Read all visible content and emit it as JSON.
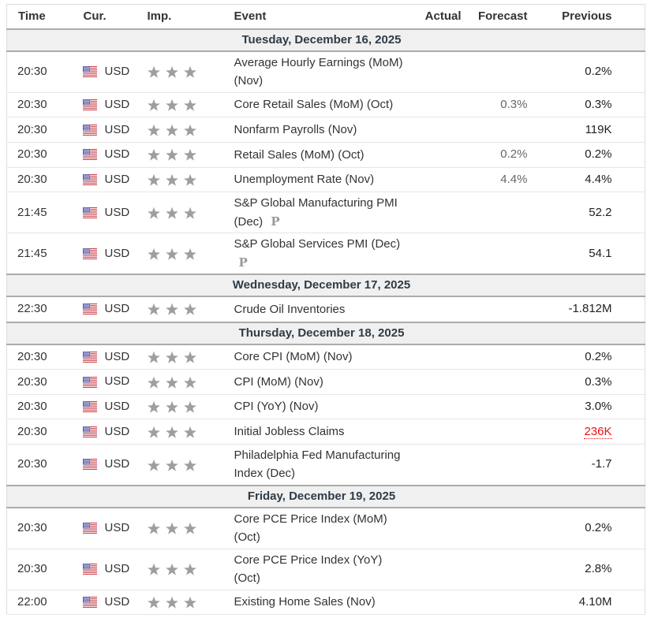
{
  "table": {
    "columns": [
      {
        "key": "time",
        "label": "Time"
      },
      {
        "key": "currency",
        "label": "Cur."
      },
      {
        "key": "importance",
        "label": "Imp."
      },
      {
        "key": "event",
        "label": "Event"
      },
      {
        "key": "actual",
        "label": "Actual"
      },
      {
        "key": "forecast",
        "label": "Forecast"
      },
      {
        "key": "previous",
        "label": "Previous"
      }
    ],
    "preliminary_marker": "P",
    "currency_flag": "us-flag",
    "importance_max": 3,
    "groups": [
      {
        "date": "Tuesday, December 16, 2025",
        "rows": [
          {
            "time": "20:30",
            "currency": "USD",
            "importance": 3,
            "event": "Average Hourly Earnings (MoM) (Nov)",
            "preliminary": false,
            "actual": "",
            "forecast": "",
            "previous": "0.2%",
            "previous_alert": false
          },
          {
            "time": "20:30",
            "currency": "USD",
            "importance": 3,
            "event": "Core Retail Sales (MoM) (Oct)",
            "preliminary": false,
            "actual": "",
            "forecast": "0.3%",
            "previous": "0.3%",
            "previous_alert": false
          },
          {
            "time": "20:30",
            "currency": "USD",
            "importance": 3,
            "event": "Nonfarm Payrolls (Nov)",
            "preliminary": false,
            "actual": "",
            "forecast": "",
            "previous": "119K",
            "previous_alert": false
          },
          {
            "time": "20:30",
            "currency": "USD",
            "importance": 3,
            "event": "Retail Sales (MoM) (Oct)",
            "preliminary": false,
            "actual": "",
            "forecast": "0.2%",
            "previous": "0.2%",
            "previous_alert": false
          },
          {
            "time": "20:30",
            "currency": "USD",
            "importance": 3,
            "event": "Unemployment Rate (Nov)",
            "preliminary": false,
            "actual": "",
            "forecast": "4.4%",
            "previous": "4.4%",
            "previous_alert": false
          },
          {
            "time": "21:45",
            "currency": "USD",
            "importance": 3,
            "event": "S&P Global Manufacturing PMI (Dec)",
            "preliminary": true,
            "actual": "",
            "forecast": "",
            "previous": "52.2",
            "previous_alert": false
          },
          {
            "time": "21:45",
            "currency": "USD",
            "importance": 3,
            "event": "S&P Global Services PMI (Dec)",
            "preliminary": true,
            "actual": "",
            "forecast": "",
            "previous": "54.1",
            "previous_alert": false
          }
        ]
      },
      {
        "date": "Wednesday, December 17, 2025",
        "rows": [
          {
            "time": "22:30",
            "currency": "USD",
            "importance": 3,
            "event": "Crude Oil Inventories",
            "preliminary": false,
            "actual": "",
            "forecast": "",
            "previous": "-1.812M",
            "previous_alert": false
          }
        ]
      },
      {
        "date": "Thursday, December 18, 2025",
        "rows": [
          {
            "time": "20:30",
            "currency": "USD",
            "importance": 3,
            "event": "Core CPI (MoM) (Nov)",
            "preliminary": false,
            "actual": "",
            "forecast": "",
            "previous": "0.2%",
            "previous_alert": false
          },
          {
            "time": "20:30",
            "currency": "USD",
            "importance": 3,
            "event": "CPI (MoM) (Nov)",
            "preliminary": false,
            "actual": "",
            "forecast": "",
            "previous": "0.3%",
            "previous_alert": false
          },
          {
            "time": "20:30",
            "currency": "USD",
            "importance": 3,
            "event": "CPI (YoY) (Nov)",
            "preliminary": false,
            "actual": "",
            "forecast": "",
            "previous": "3.0%",
            "previous_alert": false
          },
          {
            "time": "20:30",
            "currency": "USD",
            "importance": 3,
            "event": "Initial Jobless Claims",
            "preliminary": false,
            "actual": "",
            "forecast": "",
            "previous": "236K",
            "previous_alert": true
          },
          {
            "time": "20:30",
            "currency": "USD",
            "importance": 3,
            "event": "Philadelphia Fed Manufacturing Index (Dec)",
            "preliminary": false,
            "actual": "",
            "forecast": "",
            "previous": "-1.7",
            "previous_alert": false
          }
        ]
      },
      {
        "date": "Friday, December 19, 2025",
        "rows": [
          {
            "time": "20:30",
            "currency": "USD",
            "importance": 3,
            "event": "Core PCE Price Index (MoM) (Oct)",
            "preliminary": false,
            "actual": "",
            "forecast": "",
            "previous": "0.2%",
            "previous_alert": false
          },
          {
            "time": "20:30",
            "currency": "USD",
            "importance": 3,
            "event": "Core PCE Price Index (YoY) (Oct)",
            "preliminary": false,
            "actual": "",
            "forecast": "",
            "previous": "2.8%",
            "previous_alert": false
          },
          {
            "time": "22:00",
            "currency": "USD",
            "importance": 3,
            "event": "Existing Home Sales (Nov)",
            "preliminary": false,
            "actual": "",
            "forecast": "",
            "previous": "4.10M",
            "previous_alert": false
          }
        ]
      }
    ]
  },
  "colors": {
    "header_border": "#adadad",
    "row_border": "#e6e6e6",
    "day_row_background": "#f0f0f0",
    "day_row_text": "#2f3b47",
    "star_gray": "#9e9e9e",
    "alert_red": "#ec1111",
    "forecast_text": "#666666",
    "previous_text": "#222222",
    "flag_red": "#c5404b",
    "flag_blue": "#4d52a3"
  }
}
